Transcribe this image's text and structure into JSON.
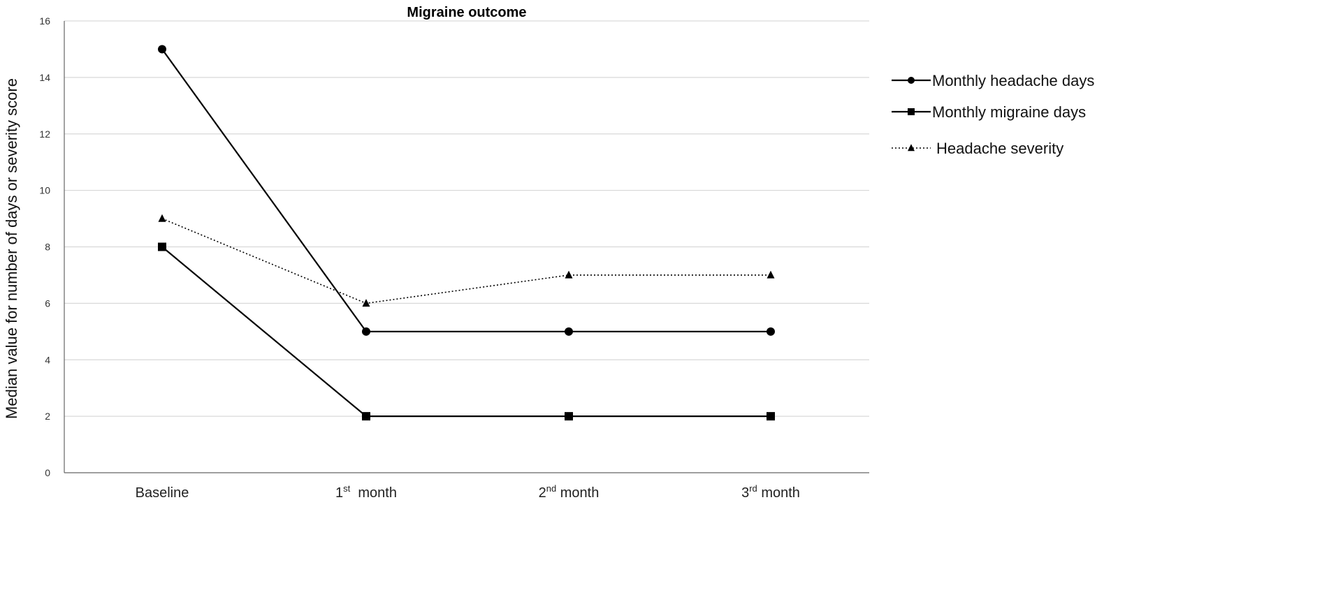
{
  "chart_data": {
    "type": "line",
    "title": "Migraine outcome",
    "ylabel": "Median value for number of days or severity score",
    "xlabel": "",
    "categories": [
      {
        "base": "Baseline",
        "sup": "",
        "rest": ""
      },
      {
        "base": "1",
        "sup": "st",
        "rest": "  month"
      },
      {
        "base": "2",
        "sup": "nd",
        "rest": " month"
      },
      {
        "base": "3",
        "sup": "rd",
        "rest": " month"
      }
    ],
    "ylim": [
      0,
      16
    ],
    "yticks": [
      "0",
      "2",
      "4",
      "6",
      "8",
      "10",
      "12",
      "14",
      "16"
    ],
    "grid": true,
    "legend_position": "right",
    "series": [
      {
        "name": "Monthly headache days",
        "values": [
          15,
          5,
          5,
          5
        ],
        "marker": "circle",
        "line_style": "solid",
        "color": "#000000"
      },
      {
        "name": "Monthly migraine days",
        "values": [
          8,
          2,
          2,
          2
        ],
        "marker": "square",
        "line_style": "solid",
        "color": "#000000"
      },
      {
        "name": "Headache severity",
        "values": [
          9,
          6,
          7,
          7
        ],
        "marker": "triangle",
        "line_style": "dotted",
        "color": "#000000"
      }
    ]
  }
}
